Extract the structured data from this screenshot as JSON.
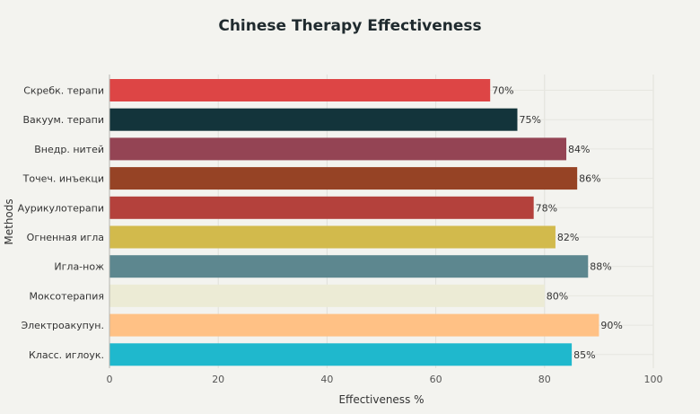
{
  "chart_data": {
    "type": "bar",
    "orientation": "horizontal",
    "title": "Chinese Therapy Effectiveness",
    "xlabel": "Effectiveness %",
    "ylabel": "Methods",
    "xlim": [
      0,
      100
    ],
    "xticks": [
      0,
      20,
      40,
      60,
      80,
      100
    ],
    "grid": true,
    "categories": [
      "Скребк. терапи",
      "Вакуум. терапи",
      "Внедр. нитей",
      "Точеч. инъекци",
      "Аурикулотерапи",
      "Огненная игла",
      "Игла-нож",
      "Моксотерапия",
      "Электроакупун.",
      "Класс. иглоук."
    ],
    "values": [
      70,
      75,
      84,
      86,
      78,
      82,
      88,
      80,
      90,
      85
    ],
    "data_labels": [
      "70%",
      "75%",
      "84%",
      "86%",
      "78%",
      "82%",
      "88%",
      "80%",
      "90%",
      "85%"
    ],
    "colors": [
      "#dd4545",
      "#13343b",
      "#944454",
      "#964325",
      "#b4413c",
      "#d2ba4c",
      "#5d878f",
      "#ecebd5",
      "#ffc185",
      "#1fb8cd"
    ]
  }
}
